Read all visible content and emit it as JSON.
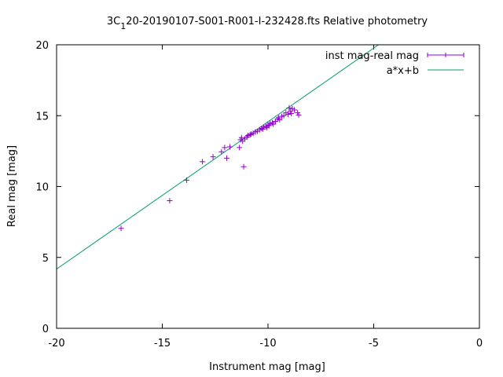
{
  "chart_data": {
    "type": "scatter",
    "title_main": "3C",
    "title_sub": "1",
    "title_rest": "20-20190107-S001-R001-I-232428.fts Relative photometry",
    "xlabel": "Instrument mag [mag]",
    "ylabel": "Real mag [mag]",
    "xlim": [
      -20,
      0
    ],
    "ylim": [
      0,
      20
    ],
    "xticks": [
      -20,
      -15,
      -10,
      -5,
      0
    ],
    "yticks": [
      0,
      5,
      10,
      15,
      20
    ],
    "grid": false,
    "legend_position": "top-right",
    "series": [
      {
        "name": "inst mag-real mag",
        "style": "points-errorbars",
        "color": "#9400d3",
        "points": [
          [
            -16.95,
            7.05
          ],
          [
            -14.65,
            9.0
          ],
          [
            -13.85,
            10.45
          ],
          [
            -13.1,
            11.75
          ],
          [
            -12.6,
            12.1
          ],
          [
            -12.2,
            12.45
          ],
          [
            -12.05,
            12.75
          ],
          [
            -11.95,
            12.0
          ],
          [
            -11.8,
            12.8
          ],
          [
            -11.35,
            12.75
          ],
          [
            -11.3,
            13.3
          ],
          [
            -11.25,
            13.45
          ],
          [
            -11.2,
            13.2
          ],
          [
            -11.15,
            11.4
          ],
          [
            -11.1,
            13.35
          ],
          [
            -11.0,
            13.5
          ],
          [
            -10.95,
            13.6
          ],
          [
            -10.85,
            13.65
          ],
          [
            -10.8,
            13.7
          ],
          [
            -10.7,
            13.75
          ],
          [
            -10.6,
            13.85
          ],
          [
            -10.5,
            13.9
          ],
          [
            -10.4,
            14.0
          ],
          [
            -10.3,
            14.1
          ],
          [
            -10.25,
            14.05
          ],
          [
            -10.2,
            14.2
          ],
          [
            -10.1,
            14.25
          ],
          [
            -10.05,
            14.15
          ],
          [
            -10.0,
            14.35
          ],
          [
            -9.95,
            14.3
          ],
          [
            -9.9,
            14.45
          ],
          [
            -9.8,
            14.5
          ],
          [
            -9.75,
            14.4
          ],
          [
            -9.65,
            14.6
          ],
          [
            -9.55,
            14.75
          ],
          [
            -9.5,
            14.85
          ],
          [
            -9.45,
            14.7
          ],
          [
            -9.35,
            14.95
          ],
          [
            -9.25,
            15.0
          ],
          [
            -9.15,
            15.2
          ],
          [
            -9.05,
            15.1
          ],
          [
            -9.0,
            15.55
          ],
          [
            -8.95,
            15.3
          ],
          [
            -8.9,
            15.15
          ],
          [
            -8.85,
            15.5
          ],
          [
            -8.75,
            15.4
          ],
          [
            -8.6,
            15.2
          ],
          [
            -8.55,
            15.05
          ]
        ]
      },
      {
        "name": "a*x+b",
        "style": "line",
        "color": "#009e73",
        "slope": 1.039,
        "intercept": 24.96
      }
    ]
  }
}
